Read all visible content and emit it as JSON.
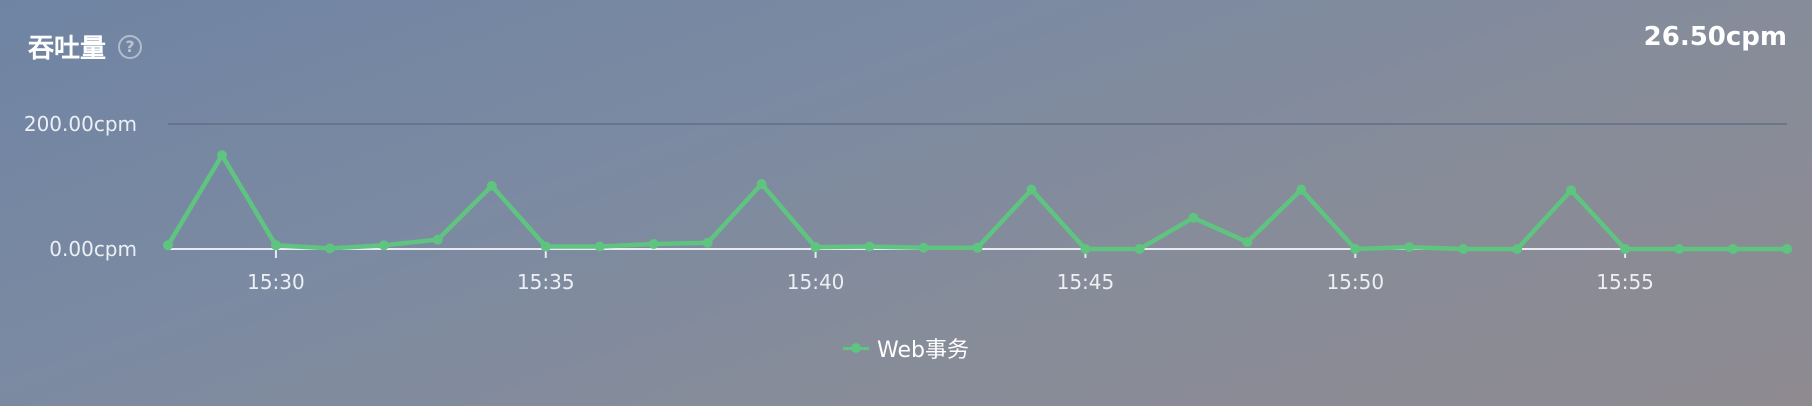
{
  "panel": {
    "title": "吞吐量",
    "help_icon": "question-circle-icon",
    "current_value": "26.50cpm"
  },
  "colors": {
    "series": "#5ec47f",
    "gridline": "#5f6f86",
    "axis": "#e8ecf2"
  },
  "chart_data": {
    "type": "line",
    "title": "吞吐量",
    "y_tick_labels": [
      "200.00cpm",
      "0.00cpm"
    ],
    "ylim": [
      0,
      200
    ],
    "x_tick_labels": [
      "15:30",
      "15:35",
      "15:40",
      "15:45",
      "15:50",
      "15:55"
    ],
    "grid": true,
    "legend_position": "bottom-center",
    "series": [
      {
        "name": "Web事务",
        "x": [
          "15:28",
          "15:29",
          "15:30",
          "15:31",
          "15:32",
          "15:33",
          "15:34",
          "15:35",
          "15:36",
          "15:37",
          "15:38",
          "15:39",
          "15:40",
          "15:41",
          "15:42",
          "15:43",
          "15:44",
          "15:45",
          "15:46",
          "15:47",
          "15:48",
          "15:49",
          "15:50",
          "15:51",
          "15:52",
          "15:53",
          "15:54",
          "15:55",
          "15:56",
          "15:57",
          "15:58"
        ],
        "values": [
          6,
          150,
          6,
          1,
          6,
          15,
          101,
          4,
          4,
          8,
          10,
          104,
          3,
          4,
          2,
          2,
          95,
          0,
          0,
          50,
          11,
          95,
          0,
          3,
          0,
          0,
          94,
          0,
          0,
          0,
          0
        ]
      }
    ]
  }
}
